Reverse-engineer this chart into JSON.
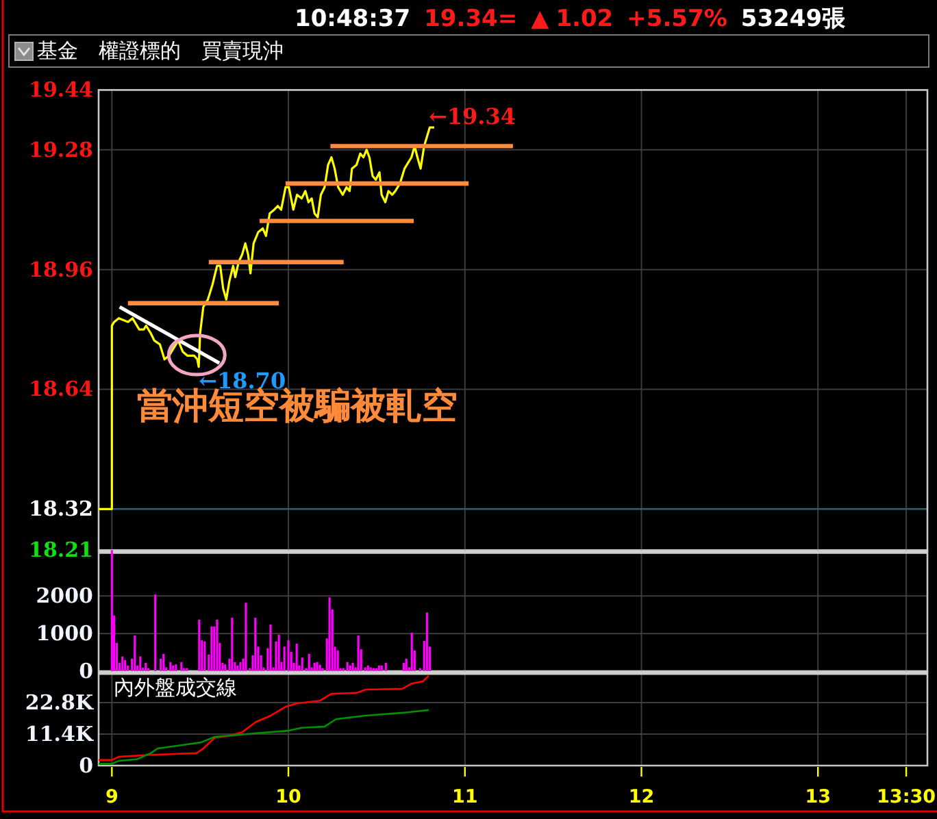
{
  "chart_data": [
    {
      "type": "line",
      "title": "10:48:37 19.34= ▲ 1.02 +5.57% 53249張",
      "subtitle": "基金 權證標的 買賣現沖",
      "series": [
        {
          "color": "#ffff00",
          "x": [
            8.925,
            9.0,
            9.0,
            9.013,
            9.039,
            9.091,
            9.117,
            9.142,
            9.155,
            9.181,
            9.194,
            9.22,
            9.241,
            9.272,
            9.285,
            9.298,
            9.324,
            9.35,
            9.376,
            9.402,
            9.427,
            9.466,
            9.484,
            9.492,
            9.5,
            9.518,
            9.544,
            9.57,
            9.596,
            9.614,
            9.63,
            9.648,
            9.666,
            9.687,
            9.699,
            9.718,
            9.738,
            9.756,
            9.772,
            9.785,
            9.803,
            9.829,
            9.855,
            9.873,
            9.894,
            9.92,
            9.94,
            9.959,
            9.984,
            10.003,
            10.028,
            10.049,
            10.075,
            10.096,
            10.114,
            10.132,
            10.148,
            10.166,
            10.184,
            10.205,
            10.225,
            10.244,
            10.262,
            10.282,
            10.308,
            10.329,
            10.347,
            10.36,
            10.386,
            10.407,
            10.425,
            10.443,
            10.459,
            10.477,
            10.495,
            10.516,
            10.528,
            10.549,
            10.567,
            10.588,
            10.606,
            10.632,
            10.658,
            10.697,
            10.715,
            10.731,
            10.749,
            10.769,
            10.788,
            10.801,
            10.826
          ],
          "values": [
            18.32,
            18.32,
            18.81,
            18.82,
            18.83,
            18.82,
            18.83,
            18.81,
            18.8,
            18.8,
            18.81,
            18.79,
            18.77,
            18.76,
            18.74,
            18.72,
            18.73,
            18.75,
            18.77,
            18.74,
            18.73,
            18.73,
            18.72,
            18.7,
            18.79,
            18.86,
            18.88,
            18.92,
            18.97,
            18.97,
            18.91,
            18.88,
            18.93,
            18.97,
            18.94,
            18.98,
            19.0,
            19.03,
            19.0,
            18.95,
            19.03,
            19.06,
            19.07,
            19.05,
            19.11,
            19.12,
            19.13,
            19.12,
            19.18,
            19.18,
            19.12,
            19.16,
            19.15,
            19.17,
            19.14,
            19.15,
            19.11,
            19.1,
            19.16,
            19.18,
            19.24,
            19.26,
            19.23,
            19.18,
            19.16,
            19.18,
            19.17,
            19.23,
            19.24,
            19.27,
            19.26,
            19.28,
            19.26,
            19.21,
            19.2,
            19.22,
            19.16,
            19.14,
            19.17,
            19.16,
            19.17,
            19.19,
            19.23,
            19.26,
            19.29,
            19.26,
            19.23,
            19.29,
            19.32,
            19.34,
            19.34
          ]
        },
        {
          "color": "#ff8c3c",
          "x": [
            9.091,
            9.946
          ],
          "values": [
            18.87,
            18.87
          ]
        },
        {
          "color": "#ff8c3c",
          "x": [
            9.549,
            10.313
          ],
          "values": [
            18.98,
            18.98
          ]
        },
        {
          "color": "#ff8c3c",
          "x": [
            9.837,
            10.71
          ],
          "values": [
            19.09,
            19.09
          ]
        },
        {
          "color": "#ff8c3c",
          "x": [
            9.984,
            11.021
          ],
          "values": [
            19.19,
            19.19
          ]
        },
        {
          "color": "#ff8c3c",
          "x": [
            10.238,
            11.272
          ],
          "values": [
            19.29,
            19.29
          ]
        },
        {
          "color": "#ffffff",
          "x": [
            9.044,
            9.609
          ],
          "values": [
            18.86,
            18.71
          ]
        }
      ],
      "xlim": [
        8.925,
        13.62
      ],
      "xticks": [
        9,
        10,
        11,
        12,
        13,
        13.5
      ],
      "ylim": [
        18.21,
        19.44
      ],
      "yticks": [
        18.21,
        18.32,
        18.64,
        18.96,
        19.28,
        19.44
      ],
      "ref_lines": [
        {
          "axis": "y",
          "value": 18.32,
          "color": "#2f5e6b"
        }
      ],
      "annotations": [
        {
          "text": "←19.34",
          "x": 10.826,
          "y": 19.34
        },
        {
          "text": "←18.70",
          "x": 9.492,
          "y": 18.7
        },
        "當沖短空被騙被軋空"
      ],
      "grid": true,
      "tick_labels": "y"
    },
    {
      "type": "bar",
      "color": "#ff00ff",
      "x": [
        9.0,
        9.013,
        9.028,
        9.044,
        9.06,
        9.075,
        9.091,
        9.114,
        9.13,
        9.145,
        9.161,
        9.176,
        9.192,
        9.207,
        9.246,
        9.277,
        9.293,
        9.308,
        9.332,
        9.347,
        9.363,
        9.394,
        9.409,
        9.425,
        9.495,
        9.51,
        9.526,
        9.549,
        9.565,
        9.58,
        9.596,
        9.611,
        9.627,
        9.642,
        9.666,
        9.681,
        9.697,
        9.712,
        9.728,
        9.744,
        9.759,
        9.782,
        9.798,
        9.813,
        9.829,
        9.845,
        9.86,
        9.883,
        9.899,
        9.915,
        9.93,
        9.946,
        9.961,
        9.977,
        10.0,
        10.016,
        10.031,
        10.047,
        10.062,
        10.078,
        10.101,
        10.117,
        10.132,
        10.148,
        10.163,
        10.179,
        10.194,
        10.218,
        10.233,
        10.249,
        10.264,
        10.28,
        10.295,
        10.311,
        10.334,
        10.35,
        10.365,
        10.381,
        10.396,
        10.412,
        10.435,
        10.451,
        10.466,
        10.482,
        10.497,
        10.513,
        10.528,
        10.552,
        10.653,
        10.668,
        10.684,
        10.699,
        10.715,
        10.746,
        10.769,
        10.785,
        10.801
      ],
      "values": [
        3220,
        1480,
        750,
        220,
        390,
        290,
        150,
        330,
        950,
        150,
        390,
        90,
        220,
        80,
        2040,
        330,
        460,
        100,
        240,
        150,
        180,
        240,
        80,
        80,
        1370,
        820,
        790,
        440,
        1190,
        1190,
        1370,
        750,
        220,
        180,
        330,
        1420,
        240,
        150,
        240,
        330,
        1820,
        80,
        420,
        1420,
        650,
        420,
        100,
        610,
        1240,
        100,
        790,
        970,
        240,
        650,
        820,
        510,
        220,
        730,
        150,
        360,
        80,
        460,
        100,
        220,
        240,
        170,
        80,
        870,
        1960,
        1640,
        650,
        550,
        80,
        80,
        240,
        150,
        220,
        100,
        950,
        580,
        100,
        150,
        100,
        80,
        80,
        150,
        150,
        220,
        220,
        330,
        100,
        1020,
        550,
        80,
        800,
        1560,
        650
      ],
      "xlim": [
        8.925,
        13.62
      ],
      "xticks": [
        9,
        10,
        11,
        12,
        13,
        13.5
      ],
      "ylim": [
        0,
        3220
      ],
      "yticks": [
        0,
        1000,
        2000
      ],
      "grid": true,
      "tick_labels": "y"
    },
    {
      "type": "line",
      "title": "內外盤成交線",
      "series": [
        {
          "color": "#ff0000",
          "x": [
            8.925,
            9.0,
            9.039,
            9.22,
            9.479,
            9.518,
            9.583,
            9.661,
            9.738,
            9.816,
            9.894,
            9.984,
            10.049,
            10.179,
            10.244,
            10.386,
            10.438,
            10.646,
            10.698,
            10.762,
            10.795
          ],
          "values": [
            2000,
            2000,
            3200,
            3900,
            4500,
            6200,
            10100,
            10700,
            12100,
            15800,
            17900,
            21300,
            22500,
            23500,
            26000,
            26300,
            27500,
            27800,
            29700,
            30500,
            32500
          ]
        },
        {
          "color": "#009000",
          "x": [
            8.925,
            9.0,
            9.039,
            9.142,
            9.22,
            9.259,
            9.35,
            9.505,
            9.583,
            9.712,
            9.816,
            9.997,
            10.075,
            10.205,
            10.269,
            10.438,
            10.646,
            10.795
          ],
          "values": [
            700,
            700,
            1700,
            2300,
            4500,
            6200,
            7000,
            8400,
            10400,
            11100,
            11700,
            12600,
            13700,
            14100,
            16800,
            18100,
            19100,
            20100
          ]
        }
      ],
      "xlim": [
        8.925,
        13.62
      ],
      "xticks": [
        9,
        10,
        11,
        12,
        13,
        {
          "value": 13.5,
          "label": "13:30"
        }
      ],
      "ylim": [
        0,
        34200
      ],
      "yticks": [
        0,
        {
          "value": 11400,
          "label": "11.4K"
        },
        {
          "value": 22800,
          "label": "22.8K"
        }
      ],
      "grid": true
    }
  ]
}
